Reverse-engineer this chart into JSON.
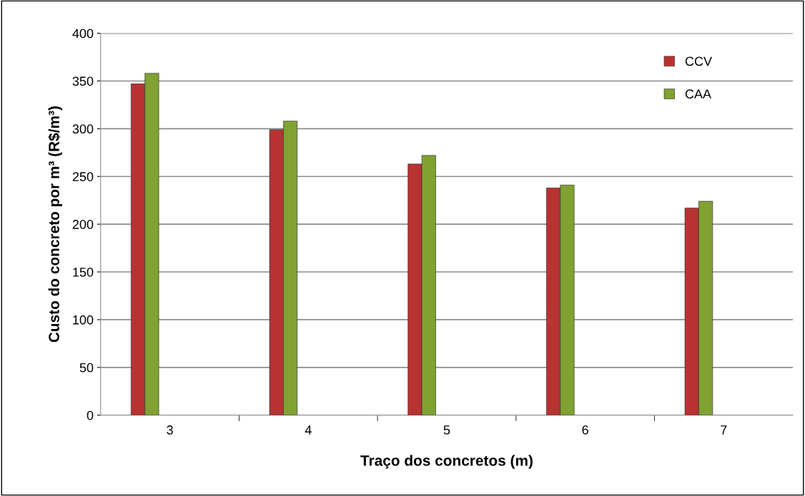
{
  "chart_data": {
    "type": "bar",
    "xlabel": "Traço dos concretos (m)",
    "ylabel": "Custo do concreto por m³ (R$/m³)",
    "categories": [
      "3",
      "4",
      "5",
      "6",
      "7"
    ],
    "series": [
      {
        "name": "CCV",
        "color": "#b83232",
        "values": [
          347,
          299,
          263,
          238,
          217
        ]
      },
      {
        "name": "CAA",
        "color": "#80a232",
        "values": [
          358,
          308,
          272,
          241,
          224
        ]
      }
    ],
    "ylim": [
      0,
      400
    ],
    "yticks": [
      0,
      50,
      100,
      150,
      200,
      250,
      300,
      350,
      400
    ],
    "grid": "y",
    "legend": "top right"
  }
}
